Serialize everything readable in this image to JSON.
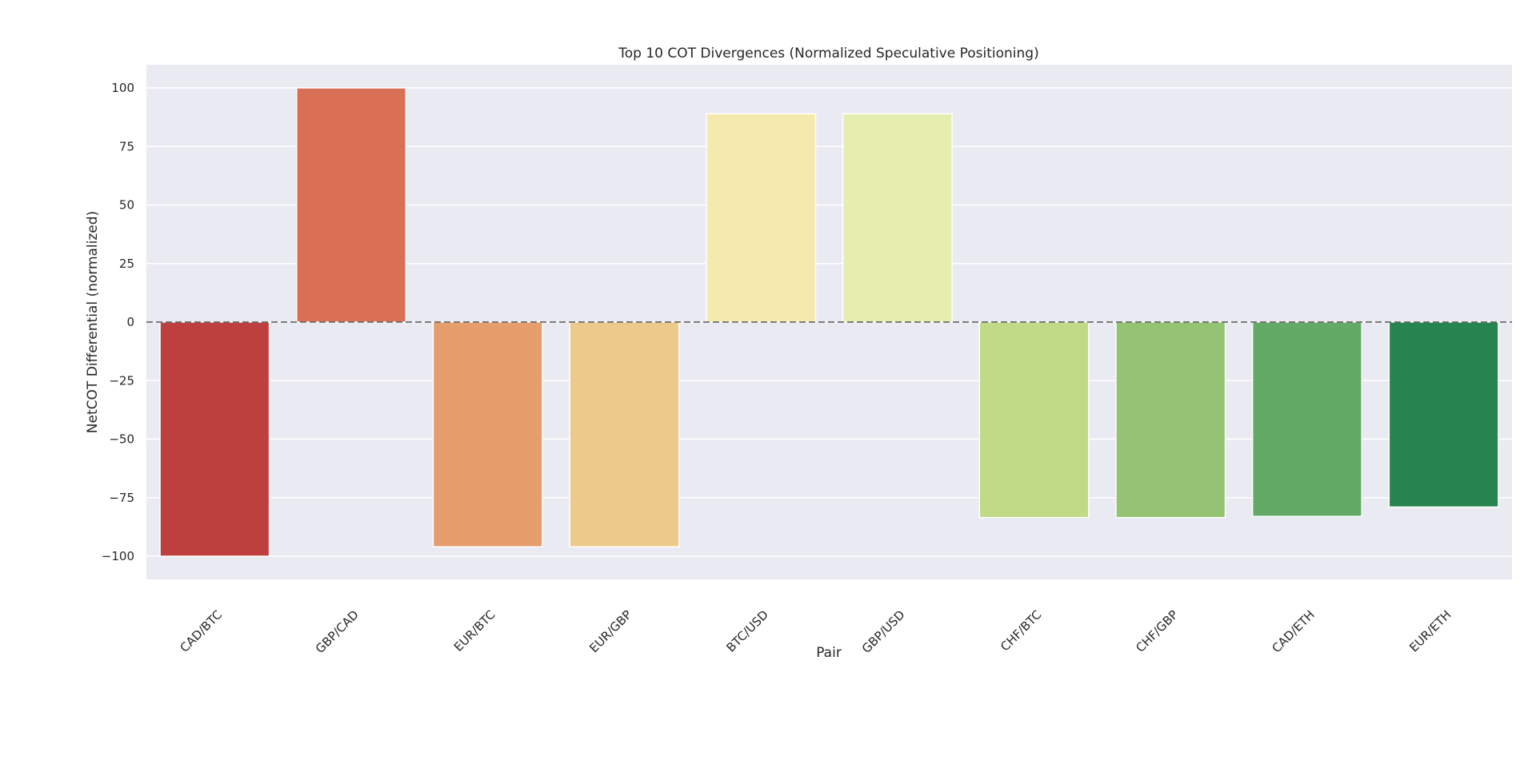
{
  "chart_data": {
    "type": "bar",
    "title": "Top 10 COT Divergences (Normalized Speculative Positioning)",
    "xlabel": "Pair",
    "ylabel": "NetCOT Differential (normalized)",
    "ylim": [
      -110,
      110
    ],
    "yticks": [
      100,
      75,
      50,
      25,
      0,
      -25,
      -50,
      -75,
      -100
    ],
    "ytick_labels": [
      "100",
      "75",
      "50",
      "25",
      "0",
      "−25",
      "−50",
      "−75",
      "−100"
    ],
    "categories": [
      "CAD/BTC",
      "GBP/CAD",
      "EUR/BTC",
      "EUR/GBP",
      "BTC/USD",
      "GBP/USD",
      "CHF/BTC",
      "CHF/GBP",
      "CAD/ETH",
      "EUR/ETH"
    ],
    "values": [
      -100,
      100,
      -96,
      -96,
      89,
      89,
      -83.5,
      -83.5,
      -83,
      -79
    ],
    "colors": [
      "#bd3f3e",
      "#d96f55",
      "#e69e6d",
      "#ecca8b",
      "#f5eaae",
      "#e5eeae",
      "#c1da88",
      "#94c374",
      "#63aa67",
      "#27844f"
    ],
    "zero_line": true,
    "grid": true,
    "background": "#eaeaf2"
  }
}
